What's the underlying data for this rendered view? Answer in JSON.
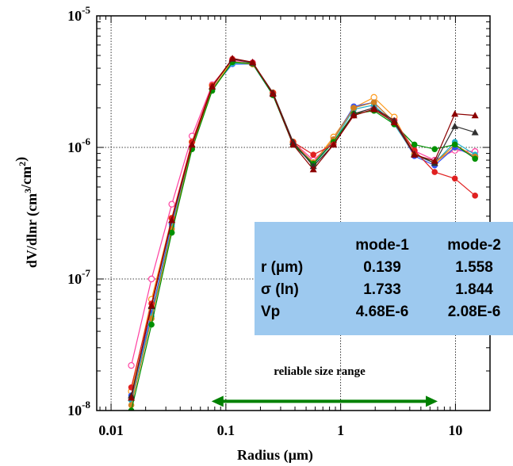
{
  "chart_data": {
    "type": "line",
    "title": "",
    "xlabel": "Radius (µm)",
    "ylabel": "dV/dlnr (cm³/cm²)",
    "x_scale": "log",
    "y_scale": "log",
    "xlim": [
      0.0075,
      20
    ],
    "ylim": [
      1e-08,
      1e-05
    ],
    "x_ticks": [
      0.01,
      0.1,
      1,
      10
    ],
    "x_tick_labels": [
      "0.01",
      "0.1",
      "1",
      "10"
    ],
    "y_ticks": [
      1e-08,
      1e-07,
      1e-06,
      1e-05
    ],
    "y_tick_labels": [
      {
        "base": "10",
        "exp": "-8"
      },
      {
        "base": "10",
        "exp": "-7"
      },
      {
        "base": "10",
        "exp": "-6"
      },
      {
        "base": "10",
        "exp": "-5"
      }
    ],
    "grid": "dotted",
    "x": [
      0.015,
      0.0225,
      0.0338,
      0.0507,
      0.076,
      0.114,
      0.171,
      0.257,
      0.385,
      0.578,
      0.867,
      1.3,
      1.95,
      2.93,
      4.39,
      6.59,
      9.88,
      14.82
    ],
    "series": [
      {
        "color": "#ff3fa0",
        "marker": "circle-open",
        "values": [
          2.2e-08,
          1e-07,
          3.7e-07,
          1.22e-06,
          3e-06,
          4.6e-06,
          4.4e-06,
          2.6e-06,
          1.1e-06,
          8e-07,
          1.1e-06,
          1.8e-06,
          2e-06,
          1.6e-06,
          9.4e-07,
          8e-07,
          9.5e-07,
          9.3e-07
        ]
      },
      {
        "color": "#ff9a1a",
        "marker": "circle-open",
        "values": [
          1.4e-08,
          7e-08,
          2.9e-07,
          1.1e-06,
          2.95e-06,
          4.5e-06,
          4.3e-06,
          2.6e-06,
          1.1e-06,
          7.6e-07,
          1.2e-06,
          2e-06,
          2.4e-06,
          1.7e-06,
          8.8e-07,
          7.6e-07,
          1e-06,
          8.5e-07
        ]
      },
      {
        "color": "#3050ff",
        "marker": "circle",
        "values": [
          1.3e-08,
          5.5e-08,
          2.6e-07,
          1e-06,
          2.8e-06,
          4.3e-06,
          4.3e-06,
          2.5e-06,
          1.07e-06,
          7.5e-07,
          1.15e-06,
          2.05e-06,
          2.2e-06,
          1.55e-06,
          8.6e-07,
          7.3e-07,
          1e-06,
          8.5e-07
        ]
      },
      {
        "color": "#20b0c8",
        "marker": "circle",
        "values": [
          1.2e-08,
          5.2e-08,
          2.5e-07,
          1e-06,
          2.8e-06,
          4.35e-06,
          4.3e-06,
          2.5e-06,
          1.05e-06,
          7.4e-07,
          1.1e-06,
          1.95e-06,
          2.1e-06,
          1.5e-06,
          8.8e-07,
          7.6e-07,
          1.1e-06,
          8.8e-07
        ]
      },
      {
        "color": "#d08020",
        "marker": "circle",
        "values": [
          1.1e-08,
          5e-08,
          2.4e-07,
          1e-06,
          2.8e-06,
          4.45e-06,
          4.3e-06,
          2.55e-06,
          1.08e-06,
          7.7e-07,
          1.15e-06,
          2e-06,
          2.2e-06,
          1.55e-06,
          9e-07,
          7.6e-07,
          1.05e-06,
          8.5e-07
        ]
      },
      {
        "color": "#009000",
        "marker": "circle",
        "values": [
          1e-08,
          4.5e-08,
          2.25e-07,
          9.7e-07,
          2.7e-06,
          4.45e-06,
          4.35e-06,
          2.5e-06,
          1.05e-06,
          7.5e-07,
          1.1e-06,
          1.8e-06,
          1.9e-06,
          1.5e-06,
          1.05e-06,
          9.7e-07,
          1.05e-06,
          8.2e-07
        ]
      },
      {
        "color": "#e02020",
        "marker": "circle",
        "values": [
          1.5e-08,
          6.5e-08,
          2.9e-07,
          1.1e-06,
          2.95e-06,
          4.7e-06,
          4.4e-06,
          2.6e-06,
          1.1e-06,
          8.8e-07,
          1.05e-06,
          1.75e-06,
          1.95e-06,
          1.6e-06,
          9.5e-07,
          6.5e-07,
          5.8e-07,
          4.3e-07
        ]
      },
      {
        "color": "#303030",
        "marker": "triangle",
        "values": [
          1.3e-08,
          6.2e-08,
          2.8e-07,
          1.05e-06,
          2.9e-06,
          4.7e-06,
          4.4e-06,
          2.6e-06,
          1.1e-06,
          7.2e-07,
          1.05e-06,
          1.8e-06,
          2e-06,
          1.6e-06,
          8.9e-07,
          7.6e-07,
          1.45e-06,
          1.3e-06
        ]
      },
      {
        "color": "#8b0000",
        "marker": "triangle",
        "values": [
          1.25e-08,
          6.3e-08,
          2.8e-07,
          1.05e-06,
          2.9e-06,
          4.75e-06,
          4.45e-06,
          2.55e-06,
          1.05e-06,
          6.8e-07,
          1.05e-06,
          1.75e-06,
          1.95e-06,
          1.55e-06,
          8.8e-07,
          7.9e-07,
          1.8e-06,
          1.75e-06
        ]
      }
    ],
    "annotation": {
      "label": "reliable size range",
      "arrow_from_x": 0.075,
      "arrow_to_x": 7.0,
      "arrow_y": 1.55e-08,
      "color": "#008000"
    },
    "table": {
      "background": "#9dc9ef",
      "header": [
        "",
        "mode-1",
        "mode-2"
      ],
      "rows": [
        [
          "r (µm)",
          "0.139",
          "1.558"
        ],
        [
          "σ (ln)",
          "1.733",
          "1.844"
        ],
        [
          "Vp",
          "4.68E-6",
          "2.08E-6"
        ]
      ]
    }
  }
}
